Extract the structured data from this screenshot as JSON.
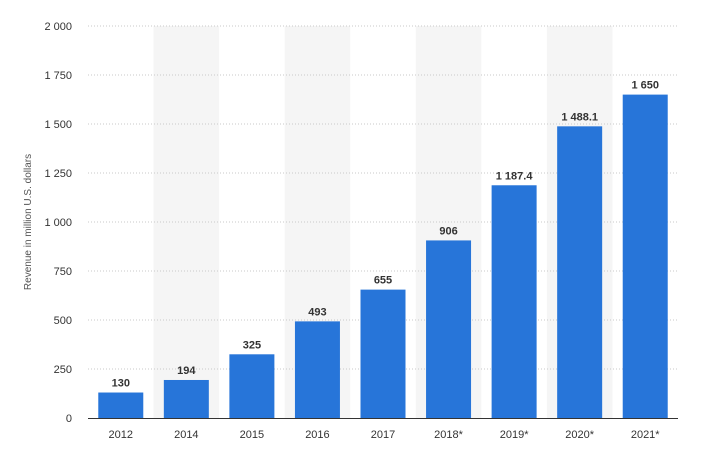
{
  "chart_data": {
    "type": "bar",
    "categories": [
      "2012",
      "2014",
      "2015",
      "2016",
      "2017",
      "2018*",
      "2019*",
      "2020*",
      "2021*"
    ],
    "values": [
      130,
      194,
      325,
      493,
      655,
      906,
      1187.4,
      1488.1,
      1650
    ],
    "value_labels": [
      "130",
      "194",
      "325",
      "493",
      "655",
      "906",
      "1 187.4",
      "1 488.1",
      "1 650"
    ],
    "ylabel": "Revenue in million U.S. dollars",
    "xlabel": "",
    "ylim": [
      0,
      2000
    ],
    "yticks": [
      0,
      250,
      500,
      750,
      1000,
      1250,
      1500,
      1750,
      2000
    ],
    "ytick_labels": [
      "0",
      "250",
      "500",
      "750",
      "1 000",
      "1 250",
      "1 500",
      "1 750",
      "2 000"
    ],
    "grid": true,
    "bar_color": "#2775d9",
    "band_color": "#f5f5f5"
  }
}
